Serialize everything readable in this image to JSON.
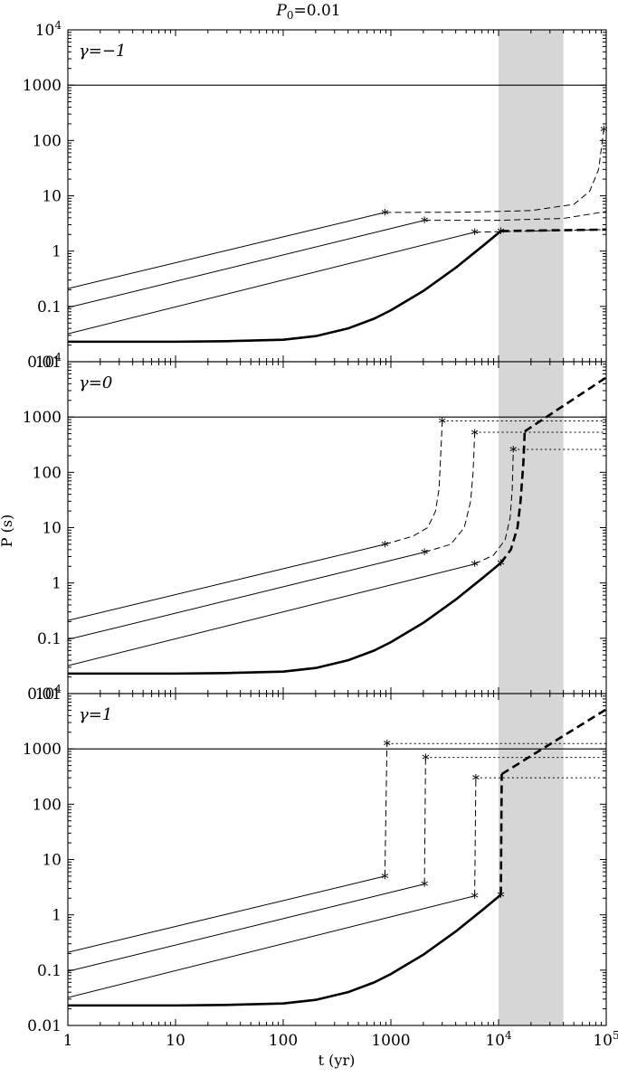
{
  "chart_data": {
    "type": "line",
    "title": {
      "base": "P",
      "sub": "0",
      "rest": "=0.01"
    },
    "xlabel": "t (yr)",
    "ylabel": "P (s)",
    "xscale": "log",
    "yscale": "log",
    "xlim": [
      1,
      100000
    ],
    "ylim": [
      0.01,
      10000
    ],
    "x_ticks": [
      {
        "v": 1,
        "base": "1",
        "exp": ""
      },
      {
        "v": 10,
        "base": "10",
        "exp": ""
      },
      {
        "v": 100,
        "base": "100",
        "exp": ""
      },
      {
        "v": 1000,
        "base": "1000",
        "exp": ""
      },
      {
        "v": 10000,
        "base": "10",
        "exp": "4"
      },
      {
        "v": 100000,
        "base": "10",
        "exp": "5"
      }
    ],
    "y_ticks": [
      {
        "v": 0.01,
        "base": "0.01",
        "exp": ""
      },
      {
        "v": 0.1,
        "base": "0.1",
        "exp": ""
      },
      {
        "v": 1,
        "base": "1",
        "exp": ""
      },
      {
        "v": 10,
        "base": "10",
        "exp": ""
      },
      {
        "v": 100,
        "base": "100",
        "exp": ""
      },
      {
        "v": 1000,
        "base": "1000",
        "exp": ""
      },
      {
        "v": 10000,
        "base": "10",
        "exp": "4"
      }
    ],
    "shaded_band_x": [
      10000,
      40000
    ],
    "reference_line_y": 1000,
    "panels": [
      {
        "label": "γ=−1",
        "lines": [
          {
            "style": "thin",
            "points": [
              [
                1,
                0.21
              ],
              [
                880,
                5.0
              ]
            ]
          },
          {
            "style": "thin",
            "points": [
              [
                1,
                0.095
              ],
              [
                2050,
                3.6
              ]
            ]
          },
          {
            "style": "thin",
            "points": [
              [
                1,
                0.032
              ],
              [
                6000,
                2.2
              ]
            ]
          },
          {
            "style": "thick",
            "points": [
              [
                1,
                0.023
              ],
              [
                10,
                0.023
              ],
              [
                30,
                0.0235
              ],
              [
                100,
                0.025
              ],
              [
                200,
                0.029
              ],
              [
                400,
                0.04
              ],
              [
                700,
                0.06
              ],
              [
                1000,
                0.085
              ],
              [
                2000,
                0.19
              ],
              [
                4000,
                0.5
              ],
              [
                7000,
                1.2
              ],
              [
                10500,
                2.3
              ]
            ]
          },
          {
            "style": "dashed",
            "points": [
              [
                880,
                5.0
              ],
              [
                5000,
                5.05
              ],
              [
                20000,
                5.4
              ],
              [
                50000,
                7
              ],
              [
                70000,
                12
              ],
              [
                85000,
                30
              ],
              [
                95000,
                160
              ]
            ]
          },
          {
            "style": "dashed",
            "points": [
              [
                2050,
                3.6
              ],
              [
                10000,
                3.6
              ],
              [
                40000,
                3.9
              ],
              [
                100000,
                5.2
              ]
            ]
          },
          {
            "style": "dashed",
            "points": [
              [
                6000,
                2.2
              ],
              [
                100000,
                2.45
              ]
            ]
          },
          {
            "style": "thick-dashed",
            "points": [
              [
                10500,
                2.3
              ],
              [
                100000,
                2.45
              ]
            ]
          }
        ],
        "markers": [
          [
            880,
            5.0
          ],
          [
            2050,
            3.6
          ],
          [
            6000,
            2.2
          ],
          [
            10500,
            2.3
          ],
          [
            95000,
            160
          ]
        ]
      },
      {
        "label": "γ=0",
        "lines": [
          {
            "style": "thin",
            "points": [
              [
                1,
                0.21
              ],
              [
                880,
                5.0
              ]
            ]
          },
          {
            "style": "thin",
            "points": [
              [
                1,
                0.095
              ],
              [
                2050,
                3.6
              ]
            ]
          },
          {
            "style": "thin",
            "points": [
              [
                1,
                0.032
              ],
              [
                6000,
                2.2
              ]
            ]
          },
          {
            "style": "thick",
            "points": [
              [
                1,
                0.023
              ],
              [
                10,
                0.023
              ],
              [
                30,
                0.0235
              ],
              [
                100,
                0.025
              ],
              [
                200,
                0.029
              ],
              [
                400,
                0.04
              ],
              [
                700,
                0.06
              ],
              [
                1000,
                0.085
              ],
              [
                2000,
                0.19
              ],
              [
                4000,
                0.5
              ],
              [
                7000,
                1.2
              ],
              [
                10500,
                2.3
              ]
            ]
          },
          {
            "style": "dashed",
            "points": [
              [
                880,
                5.0
              ],
              [
                1600,
                7
              ],
              [
                2200,
                10
              ],
              [
                2600,
                20
              ],
              [
                2800,
                50
              ],
              [
                2900,
                200
              ],
              [
                3000,
                850
              ]
            ]
          },
          {
            "style": "dashed",
            "points": [
              [
                2050,
                3.6
              ],
              [
                3600,
                5
              ],
              [
                4800,
                10
              ],
              [
                5500,
                30
              ],
              [
                5800,
                100
              ],
              [
                6000,
                500
              ]
            ]
          },
          {
            "style": "dashed",
            "points": [
              [
                6000,
                2.2
              ],
              [
                9000,
                3.2
              ],
              [
                11500,
                6
              ],
              [
                12800,
                15
              ],
              [
                13400,
                50
              ],
              [
                13700,
                250
              ]
            ]
          },
          {
            "style": "thick-dashed",
            "points": [
              [
                10500,
                2.3
              ],
              [
                13000,
                4
              ],
              [
                15000,
                10
              ],
              [
                16000,
                30
              ],
              [
                17000,
                150
              ],
              [
                17500,
                550
              ]
            ]
          },
          {
            "style": "thick-dashed",
            "points": [
              [
                17500,
                550
              ],
              [
                100000,
                5200
              ]
            ]
          },
          {
            "style": "dotted",
            "points": [
              [
                3000,
                850
              ],
              [
                100000,
                850
              ]
            ]
          },
          {
            "style": "dotted",
            "points": [
              [
                6000,
                530
              ],
              [
                100000,
                530
              ]
            ]
          },
          {
            "style": "dotted",
            "points": [
              [
                13700,
                260
              ],
              [
                100000,
                260
              ]
            ]
          }
        ],
        "markers": [
          [
            880,
            5.0
          ],
          [
            2050,
            3.6
          ],
          [
            6000,
            2.2
          ],
          [
            10500,
            2.3
          ],
          [
            3000,
            850
          ],
          [
            6000,
            520
          ],
          [
            13700,
            260
          ]
        ]
      },
      {
        "label": "γ=1",
        "lines": [
          {
            "style": "thin",
            "points": [
              [
                1,
                0.21
              ],
              [
                880,
                5.0
              ]
            ]
          },
          {
            "style": "thin",
            "points": [
              [
                1,
                0.095
              ],
              [
                2050,
                3.6
              ]
            ]
          },
          {
            "style": "thin",
            "points": [
              [
                1,
                0.032
              ],
              [
                6000,
                2.2
              ]
            ]
          },
          {
            "style": "thick",
            "points": [
              [
                1,
                0.023
              ],
              [
                10,
                0.023
              ],
              [
                30,
                0.0235
              ],
              [
                100,
                0.025
              ],
              [
                200,
                0.029
              ],
              [
                400,
                0.04
              ],
              [
                700,
                0.06
              ],
              [
                1000,
                0.085
              ],
              [
                2000,
                0.19
              ],
              [
                4000,
                0.5
              ],
              [
                7000,
                1.2
              ],
              [
                10500,
                2.3
              ]
            ]
          },
          {
            "style": "dashed",
            "points": [
              [
                880,
                5.0
              ],
              [
                920,
                1250
              ]
            ]
          },
          {
            "style": "dashed",
            "points": [
              [
                2050,
                3.6
              ],
              [
                2100,
                700
              ]
            ]
          },
          {
            "style": "dashed",
            "points": [
              [
                6000,
                2.2
              ],
              [
                6150,
                300
              ]
            ]
          },
          {
            "style": "thick-dashed",
            "points": [
              [
                10500,
                2.3
              ],
              [
                10700,
                350
              ]
            ]
          },
          {
            "style": "thick-dashed",
            "points": [
              [
                10700,
                350
              ],
              [
                100000,
                5200
              ]
            ]
          },
          {
            "style": "dotted",
            "points": [
              [
                920,
                1250
              ],
              [
                100000,
                1250
              ]
            ]
          },
          {
            "style": "dotted",
            "points": [
              [
                2100,
                700
              ],
              [
                100000,
                700
              ]
            ]
          },
          {
            "style": "dotted",
            "points": [
              [
                6150,
                300
              ],
              [
                100000,
                300
              ]
            ]
          }
        ],
        "markers": [
          [
            880,
            5.0
          ],
          [
            2050,
            3.6
          ],
          [
            6000,
            2.2
          ],
          [
            10500,
            2.3
          ],
          [
            920,
            1250
          ],
          [
            2100,
            700
          ],
          [
            6150,
            300
          ]
        ]
      }
    ]
  }
}
